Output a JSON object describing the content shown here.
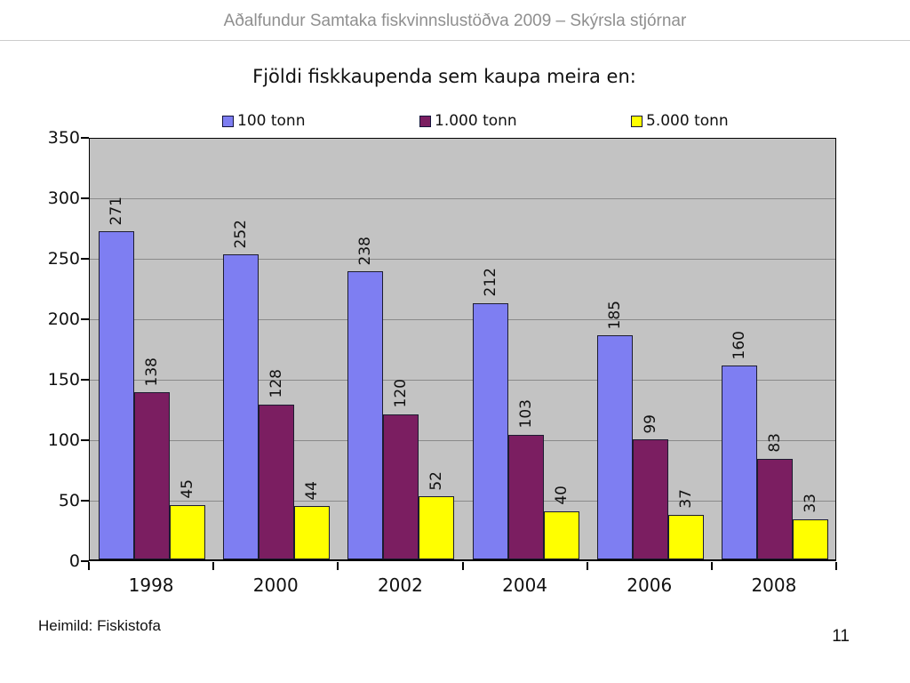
{
  "header": {
    "title": "Aðalfundur Samtaka fiskvinnslustöðva 2009 – Skýrsla stjórnar"
  },
  "chart": {
    "title": "Fjöldi fiskkaupenda sem kaupa meira en:"
  },
  "chart_data": {
    "type": "bar",
    "title": "Fjöldi fiskkaupenda sem kaupa meira en:",
    "categories": [
      "1998",
      "2000",
      "2002",
      "2004",
      "2006",
      "2008"
    ],
    "series": [
      {
        "name": "100 tonn",
        "color": "#7e7ef2",
        "values": [
          271,
          252,
          238,
          212,
          185,
          160
        ]
      },
      {
        "name": "1.000 tonn",
        "color": "#7b1e61",
        "values": [
          138,
          128,
          120,
          103,
          99,
          83
        ]
      },
      {
        "name": "5.000 tonn",
        "color": "#ffff00",
        "values": [
          45,
          44,
          52,
          40,
          37,
          33
        ]
      }
    ],
    "xlabel": "",
    "ylabel": "",
    "ylim": [
      0,
      350
    ],
    "ytick_step": 50,
    "grid": true,
    "bar_value_labels": true,
    "legend_position": "top",
    "plot_background": "#c3c3c3"
  },
  "footer": {
    "source": "Heimild: Fiskistofa",
    "page_number": "11"
  }
}
